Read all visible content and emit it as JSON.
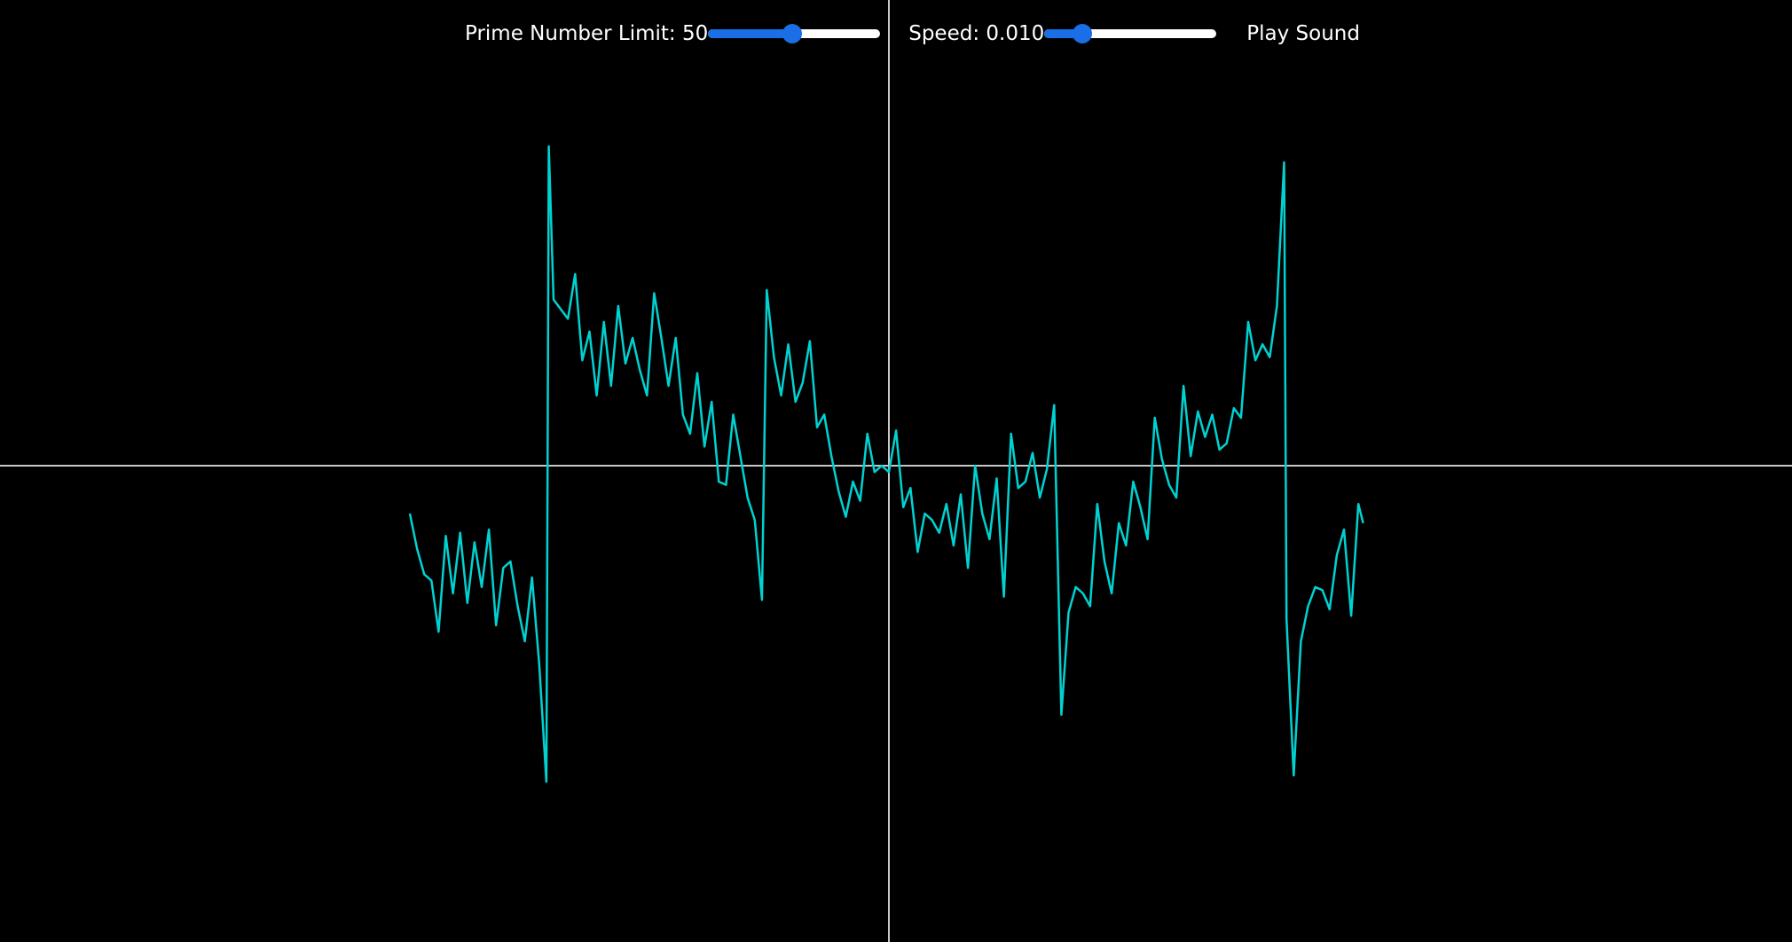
{
  "controls": {
    "prime_limit": {
      "label": "Prime Number Limit: 50",
      "value": 50,
      "slider_fraction": 0.49
    },
    "speed": {
      "label": "Speed: 0.010",
      "value": 0.01,
      "slider_fraction": 0.22
    },
    "play_button_label": "Play Sound"
  },
  "colors": {
    "background": "#000000",
    "axis": "#c8c8c8",
    "waveform": "#00d2d2",
    "slider_accent": "#1a6fe6",
    "slider_track": "#ffffff",
    "text": "#ffffff"
  },
  "chart_data": {
    "type": "line",
    "title": "",
    "xlabel": "",
    "ylabel": "",
    "grid": false,
    "axes": "crosshair through origin",
    "series": [
      {
        "points": [
          [
            -1.0,
            -0.15
          ],
          [
            -0.985,
            -0.26
          ],
          [
            -0.97,
            -0.34
          ],
          [
            -0.955,
            -0.36
          ],
          [
            -0.94,
            -0.52
          ],
          [
            -0.925,
            -0.22
          ],
          [
            -0.91,
            -0.4
          ],
          [
            -0.895,
            -0.21
          ],
          [
            -0.88,
            -0.43
          ],
          [
            -0.865,
            -0.24
          ],
          [
            -0.85,
            -0.38
          ],
          [
            -0.835,
            -0.2
          ],
          [
            -0.82,
            -0.5
          ],
          [
            -0.805,
            -0.32
          ],
          [
            -0.79,
            -0.3
          ],
          [
            -0.775,
            -0.44
          ],
          [
            -0.76,
            -0.55
          ],
          [
            -0.745,
            -0.35
          ],
          [
            -0.73,
            -0.62
          ],
          [
            -0.715,
            -0.99
          ],
          [
            -0.71,
            1.0
          ],
          [
            -0.7,
            0.52
          ],
          [
            -0.685,
            0.49
          ],
          [
            -0.67,
            0.46
          ],
          [
            -0.655,
            0.6
          ],
          [
            -0.64,
            0.33
          ],
          [
            -0.625,
            0.42
          ],
          [
            -0.61,
            0.22
          ],
          [
            -0.595,
            0.45
          ],
          [
            -0.58,
            0.25
          ],
          [
            -0.565,
            0.5
          ],
          [
            -0.55,
            0.32
          ],
          [
            -0.535,
            0.4
          ],
          [
            -0.52,
            0.3
          ],
          [
            -0.505,
            0.22
          ],
          [
            -0.49,
            0.54
          ],
          [
            -0.475,
            0.4
          ],
          [
            -0.46,
            0.25
          ],
          [
            -0.445,
            0.4
          ],
          [
            -0.43,
            0.16
          ],
          [
            -0.415,
            0.1
          ],
          [
            -0.4,
            0.29
          ],
          [
            -0.385,
            0.06
          ],
          [
            -0.37,
            0.2
          ],
          [
            -0.355,
            -0.05
          ],
          [
            -0.34,
            -0.06
          ],
          [
            -0.325,
            0.16
          ],
          [
            -0.31,
            0.03
          ],
          [
            -0.295,
            -0.1
          ],
          [
            -0.28,
            -0.17
          ],
          [
            -0.265,
            -0.42
          ],
          [
            -0.255,
            0.55
          ],
          [
            -0.24,
            0.34
          ],
          [
            -0.225,
            0.22
          ],
          [
            -0.21,
            0.38
          ],
          [
            -0.195,
            0.2
          ],
          [
            -0.18,
            0.26
          ],
          [
            -0.165,
            0.39
          ],
          [
            -0.15,
            0.12
          ],
          [
            -0.135,
            0.16
          ],
          [
            -0.12,
            0.03
          ],
          [
            -0.105,
            -0.08
          ],
          [
            -0.09,
            -0.16
          ],
          [
            -0.075,
            -0.05
          ],
          [
            -0.06,
            -0.11
          ],
          [
            -0.045,
            0.1
          ],
          [
            -0.03,
            -0.02
          ],
          [
            -0.015,
            0.0
          ],
          [
            0.0,
            -0.02
          ],
          [
            0.015,
            0.11
          ],
          [
            0.03,
            -0.13
          ],
          [
            0.045,
            -0.07
          ],
          [
            0.06,
            -0.27
          ],
          [
            0.075,
            -0.15
          ],
          [
            0.09,
            -0.17
          ],
          [
            0.105,
            -0.21
          ],
          [
            0.12,
            -0.12
          ],
          [
            0.135,
            -0.25
          ],
          [
            0.15,
            -0.09
          ],
          [
            0.165,
            -0.32
          ],
          [
            0.18,
            0.0
          ],
          [
            0.195,
            -0.15
          ],
          [
            0.21,
            -0.23
          ],
          [
            0.225,
            -0.04
          ],
          [
            0.24,
            -0.41
          ],
          [
            0.255,
            0.1
          ],
          [
            0.27,
            -0.07
          ],
          [
            0.285,
            -0.05
          ],
          [
            0.3,
            0.04
          ],
          [
            0.315,
            -0.1
          ],
          [
            0.33,
            -0.01
          ],
          [
            0.345,
            0.19
          ],
          [
            0.36,
            -0.78
          ],
          [
            0.375,
            -0.46
          ],
          [
            0.39,
            -0.38
          ],
          [
            0.405,
            -0.4
          ],
          [
            0.42,
            -0.44
          ],
          [
            0.435,
            -0.12
          ],
          [
            0.45,
            -0.3
          ],
          [
            0.465,
            -0.4
          ],
          [
            0.48,
            -0.18
          ],
          [
            0.495,
            -0.25
          ],
          [
            0.51,
            -0.05
          ],
          [
            0.525,
            -0.13
          ],
          [
            0.54,
            -0.23
          ],
          [
            0.555,
            0.15
          ],
          [
            0.57,
            0.02
          ],
          [
            0.585,
            -0.06
          ],
          [
            0.6,
            -0.1
          ],
          [
            0.615,
            0.25
          ],
          [
            0.63,
            0.03
          ],
          [
            0.645,
            0.17
          ],
          [
            0.66,
            0.09
          ],
          [
            0.675,
            0.16
          ],
          [
            0.69,
            0.05
          ],
          [
            0.705,
            0.07
          ],
          [
            0.72,
            0.18
          ],
          [
            0.735,
            0.15
          ],
          [
            0.75,
            0.45
          ],
          [
            0.765,
            0.33
          ],
          [
            0.78,
            0.38
          ],
          [
            0.795,
            0.34
          ],
          [
            0.81,
            0.5
          ],
          [
            0.825,
            0.95
          ],
          [
            0.83,
            -0.48
          ],
          [
            0.845,
            -0.97
          ],
          [
            0.86,
            -0.55
          ],
          [
            0.875,
            -0.44
          ],
          [
            0.89,
            -0.38
          ],
          [
            0.905,
            -0.39
          ],
          [
            0.92,
            -0.45
          ],
          [
            0.935,
            -0.28
          ],
          [
            0.95,
            -0.2
          ],
          [
            0.965,
            -0.47
          ],
          [
            0.98,
            -0.12
          ],
          [
            0.99,
            -0.18
          ]
        ]
      }
    ],
    "xlim": [
      -1.0,
      1.0
    ],
    "ylim": [
      -1.0,
      1.0
    ]
  }
}
